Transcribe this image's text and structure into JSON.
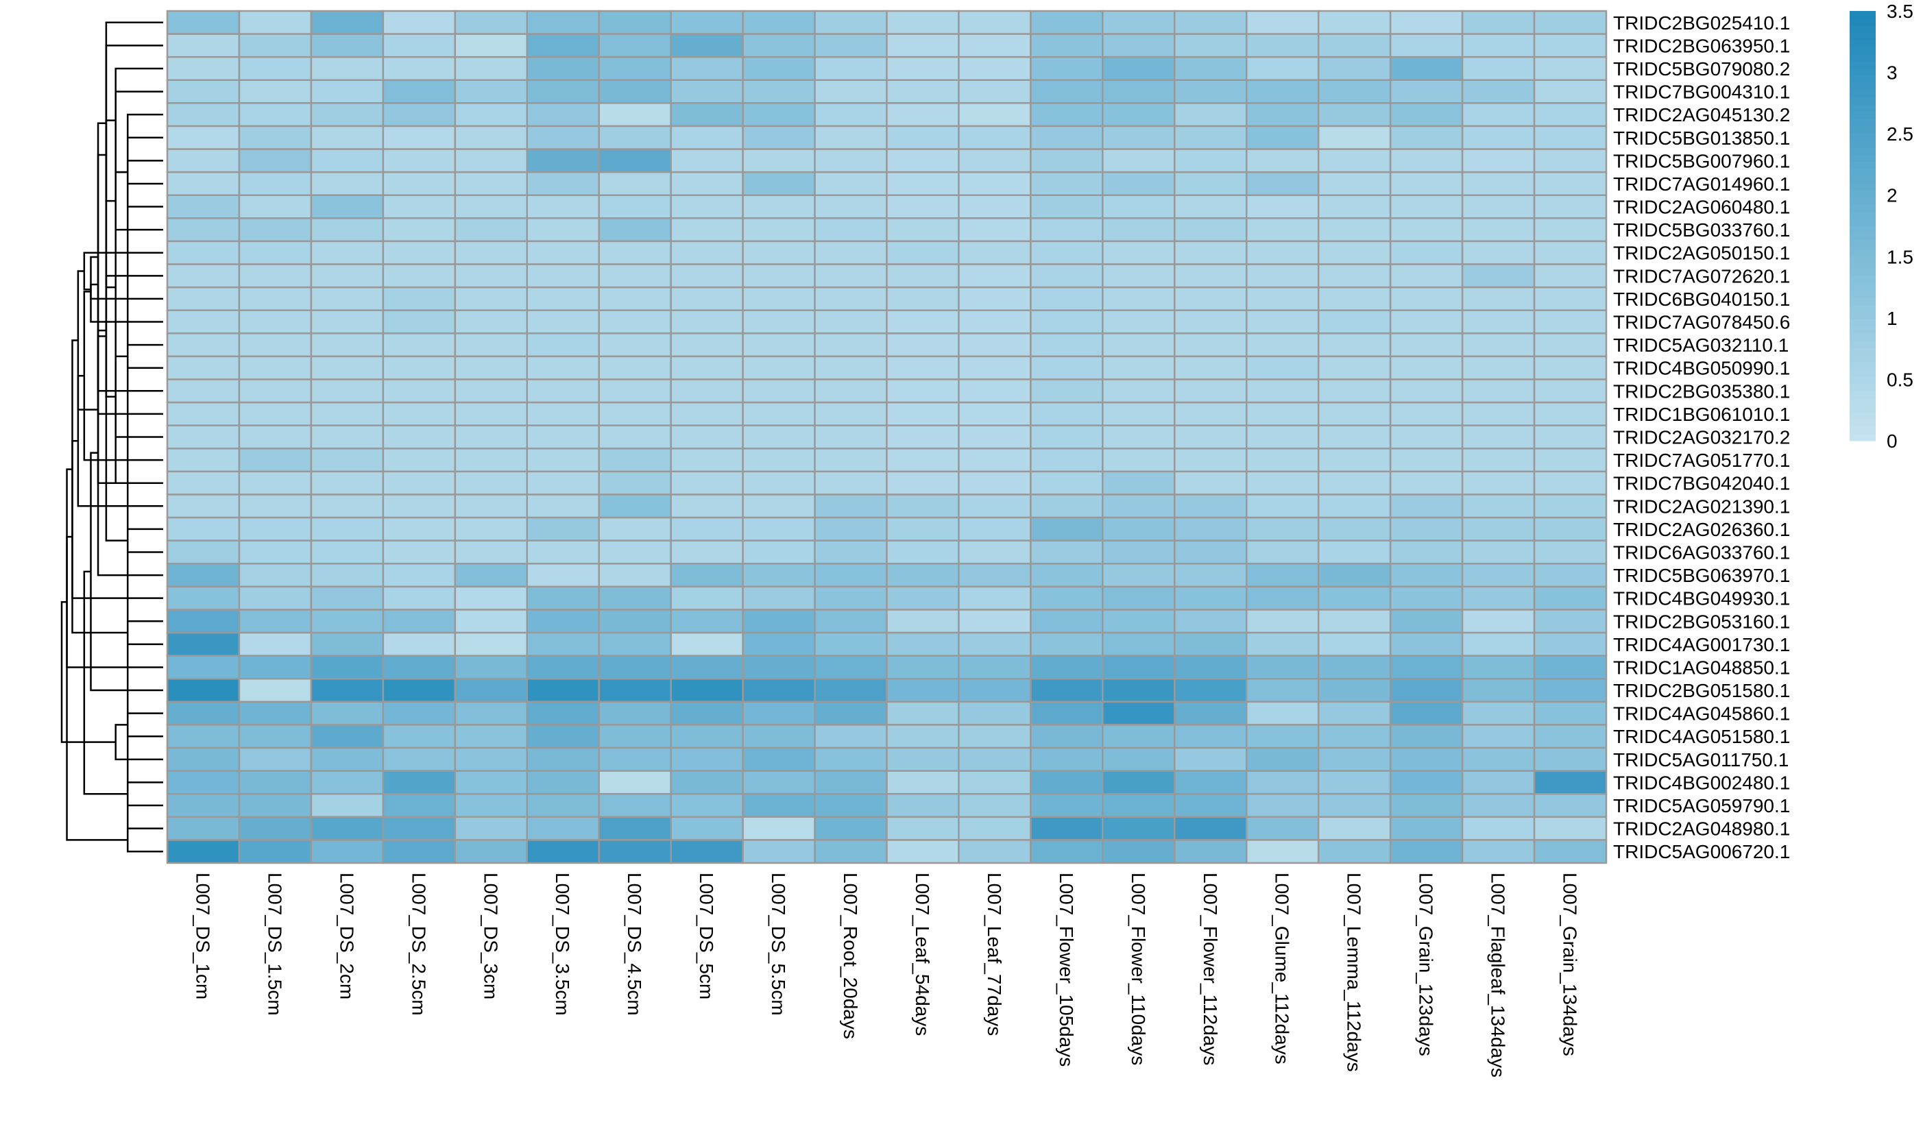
{
  "chart_data": {
    "type": "heatmap",
    "title": "",
    "xlabel": "",
    "ylabel": "",
    "columns": [
      "L007_DS_1cm",
      "L007_DS_1.5cm",
      "L007_DS_2cm",
      "L007_DS_2.5cm",
      "L007_DS_3cm",
      "L007_DS_3.5cm",
      "L007_DS_4.5cm",
      "L007_DS_5cm",
      "L007_DS_5.5cm",
      "L007_Root_20days",
      "L007_Leaf_54days",
      "L007_Leaf_77days",
      "L007_Flower_105days",
      "L007_Flower_110days",
      "L007_Flower_112days",
      "L007_Glume_112days",
      "L007_Lemma_112days",
      "L007_Grain_123days",
      "L007_Flagleaf_134days",
      "L007_Grain_134days"
    ],
    "rows": [
      "TRIDC2BG025410.1",
      "TRIDC2BG063950.1",
      "TRIDC5BG079080.2",
      "TRIDC7BG004310.1",
      "TRIDC2AG045130.2",
      "TRIDC5BG013850.1",
      "TRIDC5BG007960.1",
      "TRIDC7AG014960.1",
      "TRIDC2AG060480.1",
      "TRIDC5BG033760.1",
      "TRIDC2AG050150.1",
      "TRIDC7AG072620.1",
      "TRIDC6BG040150.1",
      "TRIDC7AG078450.6",
      "TRIDC5AG032110.1",
      "TRIDC4BG050990.1",
      "TRIDC2BG035380.1",
      "TRIDC1BG061010.1",
      "TRIDC2AG032170.2",
      "TRIDC7AG051770.1",
      "TRIDC7BG042040.1",
      "TRIDC2AG021390.1",
      "TRIDC2AG026360.1",
      "TRIDC6AG033760.1",
      "TRIDC5BG063970.1",
      "TRIDC4BG049930.1",
      "TRIDC2BG053160.1",
      "TRIDC4AG001730.1",
      "TRIDC1AG048850.1",
      "TRIDC2BG051580.1",
      "TRIDC4AG045860.1",
      "TRIDC4AG051580.1",
      "TRIDC5AG011750.1",
      "TRIDC4BG002480.1",
      "TRIDC5AG059790.1",
      "TRIDC2AG048980.1",
      "TRIDC5AG006720.1"
    ],
    "values": [
      [
        1.3,
        0.5,
        1.9,
        0.4,
        0.9,
        1.4,
        1.5,
        1.3,
        1.3,
        0.8,
        0.5,
        0.5,
        1.3,
        1.0,
        0.9,
        0.4,
        0.5,
        0.4,
        0.8,
        0.8
      ],
      [
        0.5,
        0.8,
        1.2,
        0.6,
        0.3,
        1.9,
        1.4,
        2.0,
        1.2,
        1.0,
        0.4,
        0.4,
        1.2,
        1.1,
        0.8,
        0.8,
        0.8,
        0.6,
        0.6,
        0.6
      ],
      [
        0.5,
        0.6,
        0.5,
        0.5,
        0.5,
        1.6,
        1.4,
        1.0,
        1.3,
        0.6,
        0.4,
        0.4,
        1.3,
        1.7,
        1.2,
        0.6,
        0.9,
        1.8,
        0.6,
        0.5
      ],
      [
        0.7,
        0.5,
        0.6,
        1.4,
        0.9,
        1.5,
        1.6,
        1.0,
        1.0,
        0.5,
        0.5,
        0.5,
        1.4,
        1.4,
        1.2,
        1.3,
        1.2,
        1.0,
        1.0,
        0.5
      ],
      [
        0.7,
        0.6,
        0.8,
        1.1,
        0.6,
        1.1,
        0.3,
        1.5,
        1.3,
        0.6,
        0.4,
        0.3,
        1.3,
        1.3,
        0.7,
        1.2,
        1.0,
        1.2,
        0.6,
        0.6
      ],
      [
        0.4,
        0.8,
        0.5,
        0.4,
        0.5,
        1.0,
        0.8,
        0.6,
        1.0,
        0.5,
        0.6,
        0.6,
        1.0,
        0.9,
        0.8,
        1.3,
        0.3,
        0.8,
        0.6,
        0.6
      ],
      [
        0.5,
        1.1,
        0.6,
        0.5,
        0.5,
        2.0,
        2.2,
        0.5,
        0.5,
        0.5,
        0.4,
        0.5,
        0.8,
        0.5,
        0.6,
        0.5,
        0.5,
        0.5,
        0.4,
        0.5
      ],
      [
        0.5,
        0.6,
        0.5,
        0.5,
        0.5,
        0.9,
        0.5,
        0.5,
        1.2,
        0.5,
        0.4,
        0.4,
        0.8,
        1.0,
        0.7,
        1.1,
        0.5,
        0.5,
        0.5,
        0.5
      ],
      [
        0.9,
        0.5,
        1.2,
        0.5,
        0.5,
        0.5,
        0.6,
        0.5,
        0.5,
        0.5,
        0.4,
        0.4,
        0.8,
        0.6,
        0.5,
        0.4,
        0.5,
        0.5,
        0.5,
        0.5
      ],
      [
        0.8,
        0.9,
        0.7,
        0.5,
        0.7,
        0.5,
        1.2,
        0.5,
        0.5,
        0.6,
        0.5,
        0.4,
        0.6,
        0.7,
        0.7,
        0.5,
        0.5,
        0.5,
        0.5,
        0.5
      ],
      [
        0.6,
        0.6,
        0.5,
        0.5,
        0.5,
        0.5,
        0.5,
        0.5,
        0.5,
        0.5,
        0.6,
        0.5,
        0.6,
        0.5,
        0.5,
        0.5,
        0.5,
        0.6,
        0.5,
        0.5
      ],
      [
        0.5,
        0.5,
        0.5,
        0.5,
        0.5,
        0.5,
        0.5,
        0.5,
        0.5,
        0.5,
        0.5,
        0.4,
        0.6,
        0.5,
        0.5,
        0.5,
        0.5,
        0.5,
        0.9,
        0.5
      ],
      [
        0.5,
        0.5,
        0.5,
        0.7,
        0.5,
        0.5,
        0.5,
        0.5,
        0.5,
        0.5,
        0.5,
        0.4,
        0.6,
        0.5,
        0.5,
        0.5,
        0.5,
        0.5,
        0.5,
        0.5
      ],
      [
        0.5,
        0.5,
        0.5,
        0.7,
        0.5,
        0.5,
        0.5,
        0.5,
        0.5,
        0.5,
        0.4,
        0.4,
        0.6,
        0.5,
        0.5,
        0.5,
        0.6,
        0.5,
        0.5,
        0.5
      ],
      [
        0.5,
        0.5,
        0.5,
        0.5,
        0.5,
        0.6,
        0.5,
        0.5,
        0.5,
        0.5,
        0.4,
        0.4,
        0.6,
        0.5,
        0.5,
        0.5,
        0.5,
        0.5,
        0.5,
        0.5
      ],
      [
        0.5,
        0.5,
        0.5,
        0.5,
        0.5,
        0.5,
        0.5,
        0.5,
        0.5,
        0.5,
        0.4,
        0.4,
        0.6,
        0.5,
        0.5,
        0.6,
        0.5,
        0.5,
        0.5,
        0.5
      ],
      [
        0.5,
        0.5,
        0.5,
        0.5,
        0.5,
        0.5,
        0.5,
        0.5,
        0.5,
        0.5,
        0.4,
        0.4,
        0.7,
        0.5,
        0.5,
        0.5,
        0.5,
        0.5,
        0.5,
        0.5
      ],
      [
        0.5,
        0.5,
        0.5,
        0.5,
        0.5,
        0.5,
        0.5,
        0.5,
        0.5,
        0.5,
        0.4,
        0.4,
        0.6,
        0.5,
        0.5,
        0.5,
        0.5,
        0.5,
        0.5,
        0.5
      ],
      [
        0.5,
        0.5,
        0.5,
        0.5,
        0.5,
        0.5,
        0.5,
        0.5,
        0.5,
        0.5,
        0.4,
        0.4,
        0.6,
        0.5,
        0.5,
        0.5,
        0.5,
        0.5,
        0.5,
        0.5
      ],
      [
        0.5,
        0.9,
        0.7,
        0.5,
        0.5,
        0.5,
        0.8,
        0.5,
        0.5,
        0.5,
        0.4,
        0.4,
        0.6,
        0.5,
        0.5,
        0.5,
        0.5,
        0.5,
        0.5,
        0.5
      ],
      [
        0.5,
        0.5,
        0.5,
        0.5,
        0.5,
        0.5,
        0.8,
        0.5,
        0.5,
        0.5,
        0.4,
        0.4,
        0.6,
        1.0,
        0.5,
        0.5,
        0.5,
        0.5,
        0.5,
        0.5
      ],
      [
        0.5,
        0.5,
        0.5,
        0.5,
        0.5,
        0.5,
        1.3,
        0.5,
        0.5,
        1.0,
        0.8,
        0.6,
        0.8,
        1.0,
        1.0,
        0.6,
        0.6,
        0.9,
        0.7,
        0.7
      ],
      [
        0.6,
        0.6,
        0.6,
        0.5,
        0.5,
        1.0,
        0.5,
        0.6,
        0.6,
        1.0,
        0.7,
        0.6,
        1.6,
        1.2,
        1.1,
        0.8,
        0.8,
        0.9,
        0.8,
        0.8
      ],
      [
        0.8,
        0.6,
        0.6,
        0.5,
        0.5,
        0.5,
        0.5,
        0.5,
        0.6,
        0.9,
        0.6,
        0.5,
        0.9,
        1.1,
        1.1,
        0.7,
        0.6,
        0.8,
        0.7,
        0.7
      ],
      [
        1.8,
        0.7,
        0.7,
        0.6,
        1.4,
        0.4,
        0.5,
        1.5,
        1.2,
        1.3,
        1.2,
        1.1,
        1.2,
        1.0,
        1.0,
        1.4,
        1.6,
        1.2,
        1.0,
        1.0
      ],
      [
        1.3,
        0.8,
        1.1,
        0.6,
        0.4,
        1.5,
        1.5,
        0.7,
        0.9,
        1.2,
        1.0,
        0.6,
        1.3,
        1.4,
        1.3,
        1.4,
        1.3,
        1.2,
        1.0,
        1.3
      ],
      [
        2.2,
        1.4,
        1.3,
        1.4,
        0.4,
        1.7,
        1.6,
        1.4,
        1.8,
        1.4,
        0.5,
        0.4,
        1.4,
        1.3,
        1.1,
        0.5,
        0.5,
        1.5,
        0.4,
        1.0
      ],
      [
        2.9,
        0.4,
        1.5,
        0.4,
        0.3,
        1.4,
        1.4,
        0.3,
        1.7,
        1.3,
        1.0,
        0.9,
        1.2,
        1.4,
        1.5,
        0.8,
        0.6,
        1.2,
        0.6,
        1.0
      ],
      [
        1.7,
        1.8,
        2.3,
        2.1,
        1.6,
        2.1,
        2.1,
        2.0,
        2.0,
        1.9,
        1.5,
        1.5,
        2.1,
        2.2,
        2.1,
        1.6,
        1.6,
        1.9,
        1.5,
        1.8
      ],
      [
        3.2,
        0.3,
        3.0,
        3.1,
        2.2,
        3.1,
        3.0,
        3.1,
        2.8,
        2.5,
        1.7,
        1.7,
        2.8,
        2.9,
        2.6,
        1.4,
        1.6,
        2.2,
        1.5,
        1.7
      ],
      [
        2.0,
        1.8,
        1.5,
        1.7,
        1.4,
        2.1,
        1.6,
        2.0,
        1.7,
        2.0,
        0.8,
        1.0,
        2.2,
        3.0,
        2.0,
        0.6,
        1.0,
        2.2,
        1.0,
        1.3
      ],
      [
        1.5,
        1.5,
        2.2,
        1.3,
        1.2,
        2.0,
        1.5,
        1.5,
        1.5,
        1.0,
        0.8,
        0.8,
        1.6,
        1.5,
        1.4,
        1.3,
        1.2,
        1.6,
        1.0,
        1.2
      ],
      [
        1.6,
        1.1,
        1.5,
        1.2,
        1.2,
        1.6,
        1.4,
        1.4,
        1.8,
        1.3,
        1.0,
        1.0,
        1.5,
        1.5,
        1.0,
        1.6,
        1.2,
        1.5,
        1.2,
        1.2
      ],
      [
        1.7,
        1.6,
        1.3,
        2.4,
        1.3,
        1.6,
        0.3,
        1.6,
        1.4,
        1.6,
        0.5,
        0.7,
        2.1,
        2.6,
        1.8,
        1.1,
        1.0,
        1.7,
        1.1,
        2.8
      ],
      [
        1.6,
        1.6,
        0.7,
        1.9,
        1.3,
        1.5,
        1.4,
        1.3,
        1.9,
        1.8,
        1.0,
        0.8,
        1.8,
        1.9,
        1.8,
        1.1,
        1.1,
        1.5,
        1.1,
        1.1
      ],
      [
        1.6,
        2.0,
        2.3,
        2.2,
        1.0,
        1.4,
        2.5,
        1.3,
        0.3,
        1.8,
        0.7,
        0.7,
        2.8,
        2.6,
        2.8,
        1.4,
        0.5,
        1.5,
        0.6,
        0.5
      ],
      [
        3.1,
        2.3,
        1.7,
        2.2,
        1.6,
        3.0,
        2.8,
        2.8,
        1.0,
        1.5,
        0.4,
        0.9,
        1.9,
        2.0,
        1.6,
        0.3,
        1.2,
        1.8,
        1.0,
        1.4
      ]
    ],
    "colorbar": {
      "ticks": [
        0,
        0.5,
        1,
        1.5,
        2,
        2.5,
        3,
        3.5
      ],
      "range": [
        0,
        3.5
      ]
    },
    "colors": {
      "low": "#c6e3ef",
      "high": "#1d87b9",
      "cell_border": "#999999",
      "dendrogram": "#000000"
    },
    "row_dendrogram": [
      [
        6,
        9
      ],
      [
        5,
        37
      ],
      [
        8,
        7
      ],
      [
        38,
        10
      ],
      [
        4,
        39
      ],
      [
        3,
        40
      ],
      [
        2,
        41
      ],
      [
        1,
        42
      ],
      [
        15,
        16
      ],
      [
        44,
        17
      ],
      [
        45,
        18
      ],
      [
        46,
        19
      ],
      [
        47,
        14
      ],
      [
        48,
        13
      ],
      [
        49,
        12
      ],
      [
        50,
        11
      ],
      [
        51,
        20
      ],
      [
        52,
        21
      ],
      [
        23,
        24
      ],
      [
        54,
        22
      ],
      [
        53,
        55
      ],
      [
        43,
        56
      ],
      [
        27,
        28
      ],
      [
        26,
        58
      ],
      [
        25,
        59
      ],
      [
        57,
        60
      ],
      [
        31,
        32
      ],
      [
        30,
        62
      ],
      [
        29,
        63
      ],
      [
        33,
        64
      ],
      [
        34,
        35
      ],
      [
        36,
        37
      ],
      [
        66,
        67
      ],
      [
        65,
        68
      ],
      [
        61,
        69
      ]
    ]
  }
}
